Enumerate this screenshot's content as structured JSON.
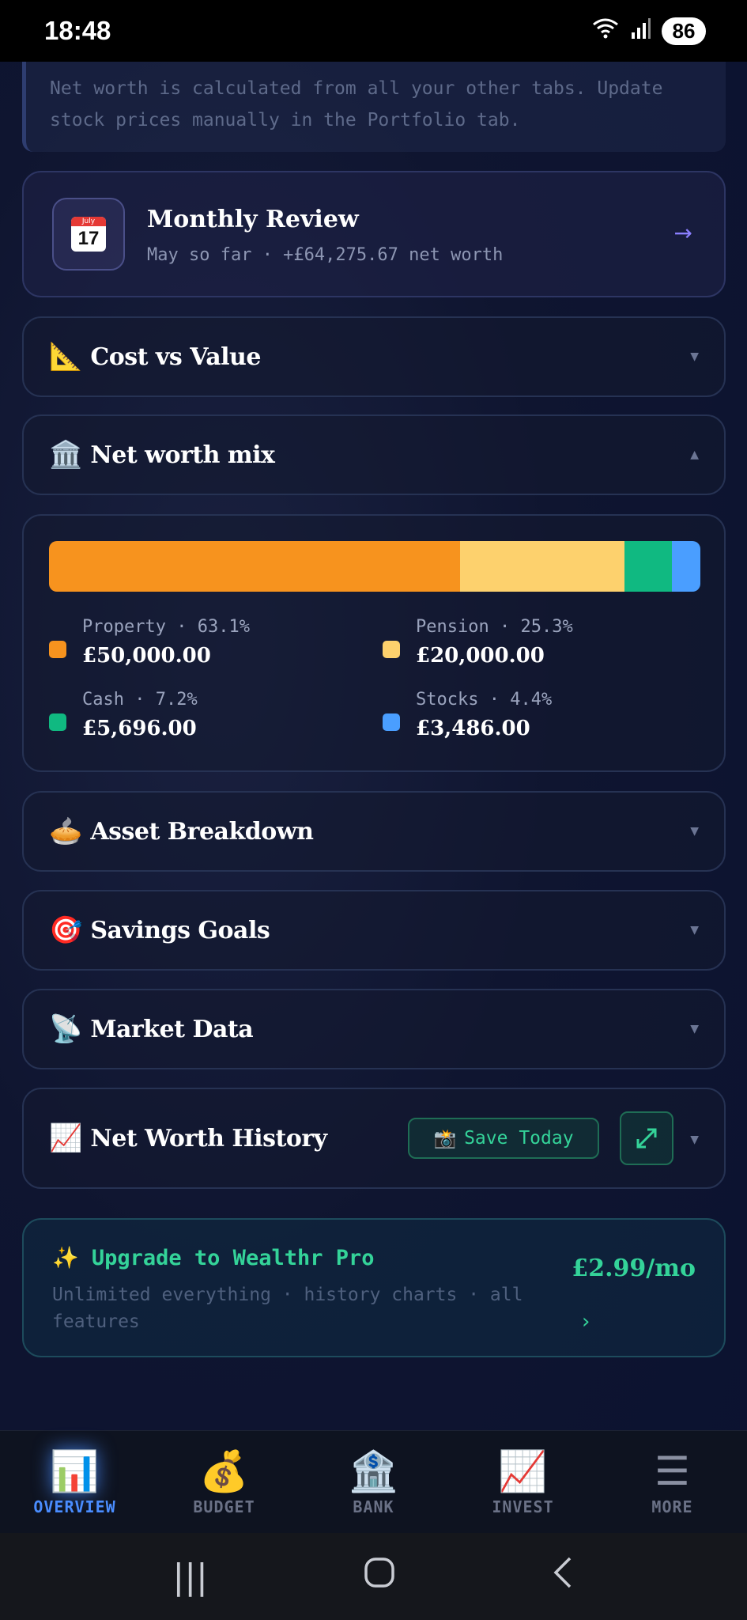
{
  "status": {
    "time": "18:48",
    "battery": "86"
  },
  "info_note": "Net worth is calculated from all your other tabs. Update stock prices manually in the Portfolio tab.",
  "monthly_review": {
    "calendar_month": "July",
    "calendar_day": "17",
    "title": "Monthly Review",
    "subtitle": "May so far · +£64,275.67 net worth"
  },
  "sections": {
    "cost_vs_value": {
      "emoji": "📐",
      "title": "Cost vs Value"
    },
    "net_worth_mix": {
      "emoji": "🏛️",
      "title": "Net worth mix"
    },
    "asset_breakdown": {
      "emoji": "🥧",
      "title": "Asset Breakdown"
    },
    "savings_goals": {
      "emoji": "🎯",
      "title": "Savings Goals"
    },
    "market_data": {
      "emoji": "📡",
      "title": "Market Data"
    },
    "net_worth_history": {
      "emoji": "📈",
      "title": "Net Worth History",
      "save_emoji": "📸",
      "save_label": "Save Today"
    }
  },
  "net_worth_mix": {
    "items": [
      {
        "name": "Property",
        "percent": "63.1%",
        "percent_value": 63.1,
        "value": "£50,000.00",
        "color": "#f7931e"
      },
      {
        "name": "Pension",
        "percent": "25.3%",
        "percent_value": 25.3,
        "value": "£20,000.00",
        "color": "#fdd16d"
      },
      {
        "name": "Cash",
        "percent": "7.2%",
        "percent_value": 7.2,
        "value": "£5,696.00",
        "color": "#10b981"
      },
      {
        "name": "Stocks",
        "percent": "4.4%",
        "percent_value": 4.4,
        "value": "£3,486.00",
        "color": "#4a9eff"
      }
    ]
  },
  "upgrade": {
    "title": "✨ Upgrade to Wealthr Pro",
    "subtitle": "Unlimited everything · history charts · all features",
    "price": "£2.99/mo"
  },
  "bottom_nav": [
    {
      "icon": "📊",
      "label": "OVERVIEW",
      "active": true
    },
    {
      "icon": "💰",
      "label": "BUDGET",
      "active": false
    },
    {
      "icon": "🏦",
      "label": "BANK",
      "active": false
    },
    {
      "icon": "📈",
      "label": "INVEST",
      "active": false
    },
    {
      "icon": "☰",
      "label": "MORE",
      "active": false
    }
  ]
}
